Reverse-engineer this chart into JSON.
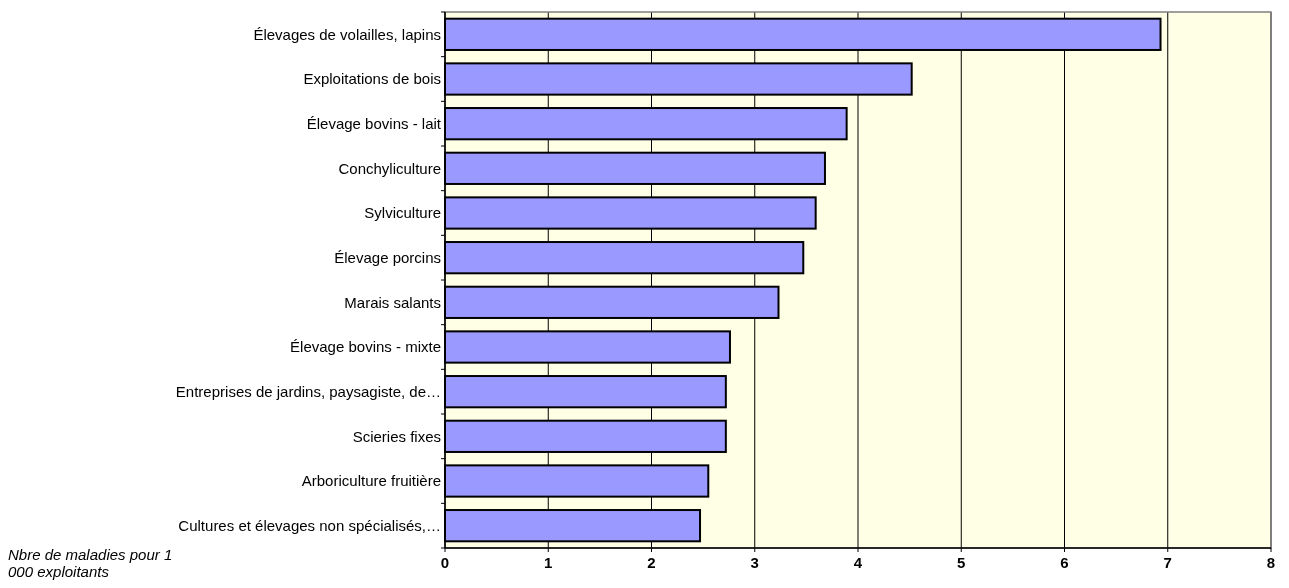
{
  "chart_data": {
    "type": "bar",
    "orientation": "horizontal",
    "xlabel": "Nbre de maladies pour 1 000 exploitants",
    "categories": [
      "Élevages de volailles, lapins",
      "Exploitations de bois",
      "Élevage bovins - lait",
      "Conchyliculture",
      "Sylviculture",
      "Élevage porcins",
      "Marais salants",
      "Élevage bovins - mixte",
      "Entreprises de jardins, paysagiste, de…",
      "Scieries fixes",
      "Arboriculture fruitière",
      "Cultures et élevages non spécialisés,…"
    ],
    "values": [
      6.93,
      4.52,
      3.89,
      3.68,
      3.59,
      3.47,
      3.23,
      2.76,
      2.72,
      2.72,
      2.55,
      2.47
    ],
    "color": "#9999ff",
    "xlim": [
      0,
      8
    ],
    "xticks": [
      0,
      1,
      2,
      3,
      4,
      5,
      6,
      7,
      8
    ],
    "grid": "x"
  }
}
